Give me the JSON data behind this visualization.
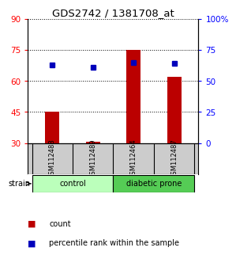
{
  "title": "GDS2742 / 1381708_at",
  "samples": [
    "GSM112488",
    "GSM112489",
    "GSM112464",
    "GSM112487"
  ],
  "count_values": [
    45,
    30.5,
    75,
    62
  ],
  "count_baseline": 30,
  "percentile_values": [
    63,
    61,
    65,
    64
  ],
  "ylim_left": [
    30,
    90
  ],
  "ylim_right": [
    0,
    100
  ],
  "yticks_left": [
    30,
    45,
    60,
    75,
    90
  ],
  "yticks_right": [
    0,
    25,
    50,
    75,
    100
  ],
  "yticklabels_right": [
    "0",
    "25",
    "50",
    "75",
    "100%"
  ],
  "bar_color": "#bb0000",
  "dot_color": "#0000bb",
  "groups": [
    {
      "label": "control",
      "samples": [
        0,
        1
      ],
      "color": "#bbffbb"
    },
    {
      "label": "diabetic prone",
      "samples": [
        2,
        3
      ],
      "color": "#55cc55"
    }
  ],
  "strain_label": "strain",
  "legend_count_label": "count",
  "legend_pct_label": "percentile rank within the sample",
  "background_color": "#ffffff",
  "sample_box_color": "#cccccc",
  "bar_width": 0.35
}
